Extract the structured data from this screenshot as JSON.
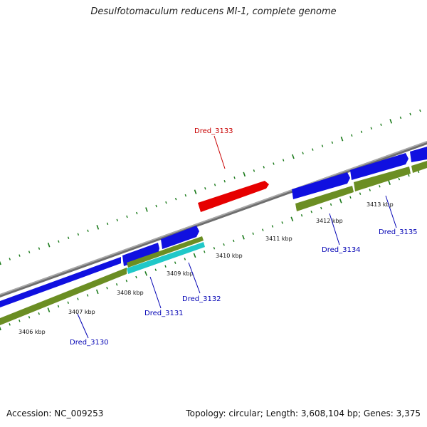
{
  "header": {
    "title": "Desulfotomaculum reducens MI-1, complete genome"
  },
  "footer": {
    "accession": "Accession: NC_009253",
    "summary": "Topology: circular; Length: 3,608,104 bp; Genes: 3,375"
  },
  "map": {
    "kbp_labels": [
      "3406 kbp",
      "3407 kbp",
      "3408 kbp",
      "3409 kbp",
      "3410 kbp",
      "3411 kbp",
      "3412 kbp",
      "3413 kbp"
    ],
    "gene_labels": [
      "Dred_3130",
      "Dred_3131",
      "Dred_3132",
      "Dred_3133",
      "Dred_3134",
      "Dred_3135"
    ]
  },
  "colors": {
    "cds": "#1010e0",
    "gene": "#6b8e23",
    "highlight": "#e60000",
    "rna": "#20c8c8",
    "backbone": "#8c8c8c",
    "ticks": "#1a7a1a",
    "gene_label": "#0000b4",
    "highlight_label": "#c80000"
  }
}
